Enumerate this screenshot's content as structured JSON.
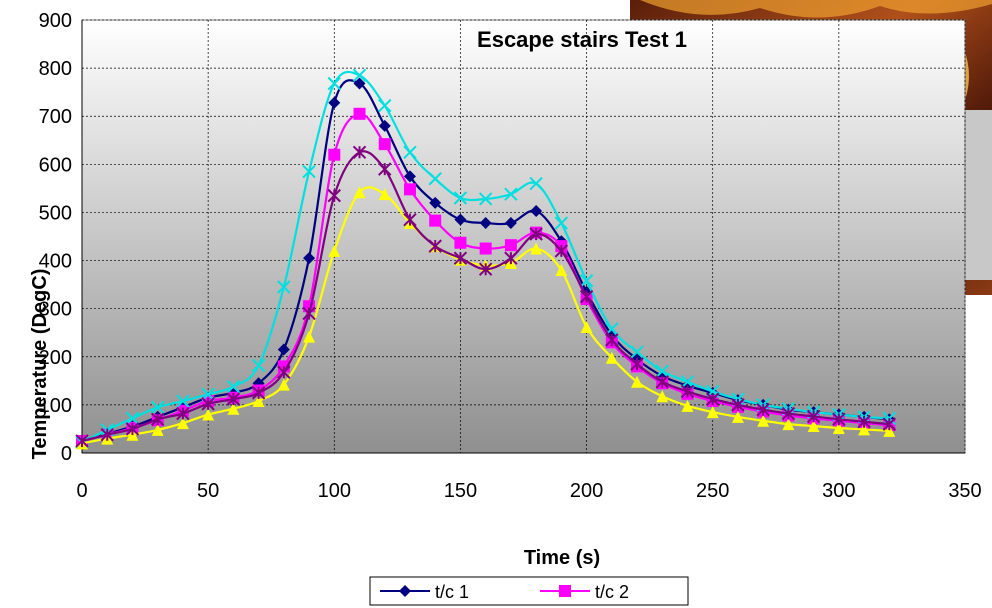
{
  "chart_data": {
    "type": "line",
    "title": "Escape stairs Test 1",
    "xlabel": "Time (s)",
    "ylabel": "Temperature (DegC)",
    "xlim": [
      0,
      350
    ],
    "ylim": [
      0,
      900
    ],
    "xticks": [
      0,
      50,
      100,
      150,
      200,
      250,
      300,
      350
    ],
    "yticks": [
      0,
      100,
      200,
      300,
      400,
      500,
      600,
      700,
      800,
      900
    ],
    "x_tick_labels": [
      "0",
      "50",
      "100",
      "150",
      "200",
      "250",
      "300",
      "350"
    ],
    "y_tick_labels": [
      "0",
      "100",
      "200",
      "300",
      "400",
      "500",
      "600",
      "700",
      "800",
      "900"
    ],
    "grid": true,
    "legend_position": "bottom",
    "x": [
      0,
      10,
      20,
      30,
      40,
      50,
      60,
      70,
      80,
      90,
      100,
      110,
      120,
      130,
      140,
      150,
      160,
      170,
      180,
      190,
      200,
      210,
      220,
      230,
      240,
      250,
      260,
      270,
      280,
      290,
      300,
      310,
      320
    ],
    "series": [
      {
        "name": "t/c 1",
        "color": "#000080",
        "marker": "diamond",
        "in_legend": true,
        "values": [
          25,
          40,
          55,
          75,
          95,
          115,
          125,
          145,
          215,
          405,
          728,
          768,
          680,
          575,
          520,
          485,
          478,
          478,
          503,
          440,
          335,
          245,
          195,
          160,
          140,
          125,
          110,
          100,
          90,
          85,
          80,
          75,
          70
        ]
      },
      {
        "name": "t/c 2",
        "color": "#ff00ff",
        "marker": "square",
        "in_legend": true,
        "values": [
          25,
          38,
          52,
          68,
          88,
          108,
          115,
          130,
          180,
          305,
          620,
          705,
          642,
          548,
          483,
          437,
          425,
          432,
          458,
          430,
          320,
          230,
          180,
          145,
          123,
          108,
          96,
          86,
          78,
          72,
          67,
          62,
          58
        ]
      },
      {
        "color": "#00e0e0",
        "marker": "x",
        "values": [
          22,
          48,
          72,
          95,
          108,
          122,
          138,
          182,
          345,
          585,
          768,
          785,
          722,
          625,
          570,
          530,
          528,
          538,
          560,
          478,
          358,
          258,
          210,
          170,
          148,
          128,
          112,
          100,
          92,
          85,
          80,
          75,
          72
        ]
      },
      {
        "color": "#ffff00",
        "marker": "triangle",
        "values": [
          20,
          30,
          38,
          48,
          62,
          80,
          92,
          108,
          142,
          242,
          420,
          542,
          538,
          478,
          430,
          402,
          390,
          395,
          425,
          380,
          262,
          198,
          148,
          118,
          98,
          85,
          75,
          67,
          60,
          56,
          52,
          49,
          46
        ]
      },
      {
        "color": "#800080",
        "marker": "star",
        "values": [
          25,
          38,
          50,
          70,
          82,
          102,
          112,
          125,
          168,
          290,
          535,
          625,
          590,
          485,
          430,
          405,
          382,
          405,
          455,
          420,
          325,
          235,
          185,
          148,
          128,
          112,
          100,
          90,
          82,
          76,
          70,
          65,
          60
        ]
      }
    ]
  }
}
